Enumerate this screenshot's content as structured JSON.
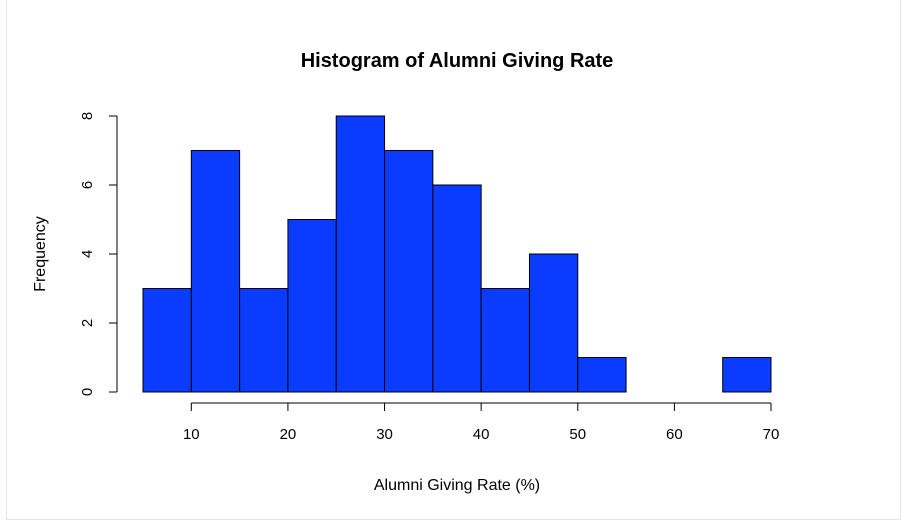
{
  "chart_data": {
    "type": "bar",
    "title": "Histogram of Alumni Giving Rate",
    "xlabel": "Alumni Giving Rate (%)",
    "ylabel": "Frequency",
    "bin_edges": [
      5,
      10,
      15,
      20,
      25,
      30,
      35,
      40,
      45,
      50,
      55,
      60,
      65,
      70
    ],
    "values": [
      3,
      7,
      3,
      5,
      8,
      7,
      6,
      3,
      4,
      1,
      0,
      0,
      1
    ],
    "xticks": [
      10,
      20,
      30,
      40,
      50,
      60,
      70
    ],
    "yticks": [
      0,
      2,
      4,
      6,
      8
    ],
    "xlim": [
      5,
      70
    ],
    "ylim": [
      0,
      8
    ],
    "bar_color": "#0a3cff",
    "grid": false,
    "legend": "none"
  }
}
